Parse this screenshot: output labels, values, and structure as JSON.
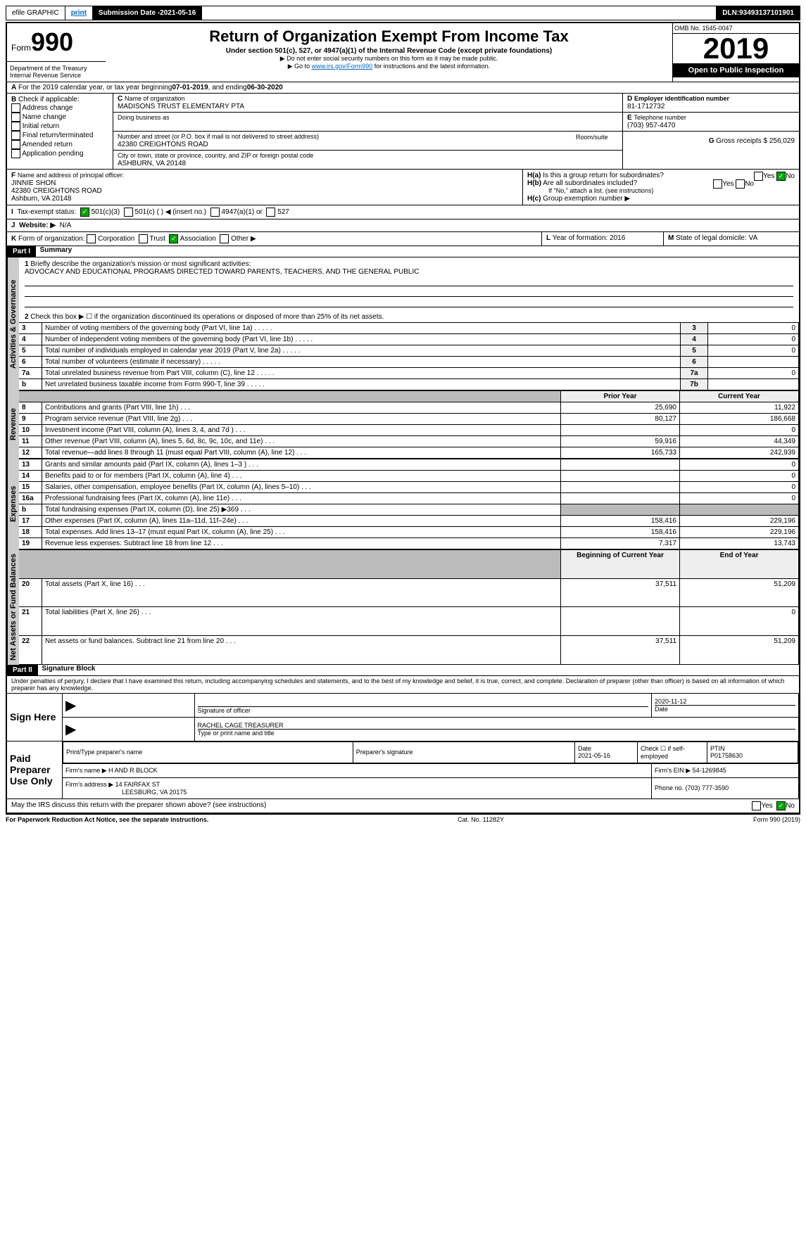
{
  "topbar": {
    "efile": "efile GRAPHIC",
    "print": "print",
    "subdate_label": "Submission Date - ",
    "subdate": "2021-05-16",
    "dln_label": "DLN: ",
    "dln": "93493137101901"
  },
  "header": {
    "form": "Form",
    "num": "990",
    "title": "Return of Organization Exempt From Income Tax",
    "sub": "Under section 501(c), 527, or 4947(a)(1) of the Internal Revenue Code (except private foundations)",
    "note1": "▶ Do not enter social security numbers on this form as it may be made public.",
    "note2a": "▶ Go to ",
    "note2link": "www.irs.gov/Form990",
    "note2b": " for instructions and the latest information.",
    "omb": "OMB No. 1545-0047",
    "year": "2019",
    "open": "Open to Public Inspection",
    "dept": "Department of the Treasury\nInternal Revenue Service"
  },
  "A": {
    "text": "For the 2019 calendar year, or tax year beginning ",
    "begin": "07-01-2019",
    "mid": " , and ending ",
    "end": "06-30-2020"
  },
  "B": {
    "label": "Check if applicable:",
    "opts": [
      "Address change",
      "Name change",
      "Initial return",
      "Final return/terminated",
      "Amended return",
      "Application pending"
    ]
  },
  "C": {
    "name_lbl": "Name of organization",
    "name": "MADISONS TRUST ELEMENTARY PTA",
    "dba_lbl": "Doing business as",
    "addr_lbl": "Number and street (or P.O. box if mail is not delivered to street address)",
    "room": "Room/suite",
    "addr": "42380 CREIGHTONS ROAD",
    "city_lbl": "City or town, state or province, country, and ZIP or foreign postal code",
    "city": "ASHBURN, VA  20148"
  },
  "D": {
    "lbl": "Employer identification number",
    "val": "81-1712732"
  },
  "E": {
    "lbl": "Telephone number",
    "val": "(703) 957-4470"
  },
  "G": {
    "lbl": "Gross receipts $ ",
    "val": "256,029"
  },
  "F": {
    "lbl": "Name and address of principal officer:",
    "name": "JINNIE SHON",
    "addr1": "42380 CREIGHTONS ROAD",
    "addr2": "Ashburn, VA  20148"
  },
  "H": {
    "a": "Is this a group return for subordinates?",
    "b": "Are all subordinates included?",
    "note": "If \"No,\" attach a list. (see instructions)",
    "c": "Group exemption number ▶",
    "yes": "Yes",
    "no": "No"
  },
  "I": {
    "lbl": "Tax-exempt status:",
    "a": "501(c)(3)",
    "b": "501(c) (  ) ◀ (insert no.)",
    "c": "4947(a)(1) or",
    "d": "527"
  },
  "J": {
    "lbl": "Website: ▶",
    "val": "N/A"
  },
  "K": {
    "lbl": "Form of organization:",
    "opts": [
      "Corporation",
      "Trust",
      "Association",
      "Other ▶"
    ],
    "checked": 2
  },
  "L": {
    "lbl": "Year of formation: ",
    "val": "2016"
  },
  "M": {
    "lbl": "State of legal domicile: ",
    "val": "VA"
  },
  "part1": {
    "title": "Part I",
    "name": "Summary",
    "q1": {
      "lbl": "Briefly describe the organization's mission or most significant activities:",
      "val": "ADVOCACY AND EDUCATIONAL PROGRAMS DIRECTED TOWARD PARENTS, TEACHERS, AND THE GENERAL PUBLIC"
    },
    "q2": "Check this box ▶ ☐ if the organization discontinued its operations or disposed of more than 25% of its net assets.",
    "rows": [
      {
        "n": "3",
        "t": "Number of voting members of the governing body (Part VI, line 1a)",
        "box": "3",
        "v": "0"
      },
      {
        "n": "4",
        "t": "Number of independent voting members of the governing body (Part VI, line 1b)",
        "box": "4",
        "v": "0"
      },
      {
        "n": "5",
        "t": "Total number of individuals employed in calendar year 2019 (Part V, line 2a)",
        "box": "5",
        "v": "0"
      },
      {
        "n": "6",
        "t": "Total number of volunteers (estimate if necessary)",
        "box": "6",
        "v": ""
      },
      {
        "n": "7a",
        "t": "Total unrelated business revenue from Part VIII, column (C), line 12",
        "box": "7a",
        "v": "0"
      },
      {
        "n": "b",
        "t": "Net unrelated business taxable income from Form 990-T, line 39",
        "box": "7b",
        "v": ""
      }
    ],
    "hdr_prior": "Prior Year",
    "hdr_curr": "Current Year",
    "rev": [
      {
        "n": "8",
        "t": "Contributions and grants (Part VIII, line 1h)",
        "p": "25,690",
        "c": "11,922"
      },
      {
        "n": "9",
        "t": "Program service revenue (Part VIII, line 2g)",
        "p": "80,127",
        "c": "186,668"
      },
      {
        "n": "10",
        "t": "Investment income (Part VIII, column (A), lines 3, 4, and 7d )",
        "p": "",
        "c": "0"
      },
      {
        "n": "11",
        "t": "Other revenue (Part VIII, column (A), lines 5, 6d, 8c, 9c, 10c, and 11e)",
        "p": "59,916",
        "c": "44,349"
      },
      {
        "n": "12",
        "t": "Total revenue—add lines 8 through 11 (must equal Part VIII, column (A), line 12)",
        "p": "165,733",
        "c": "242,939"
      }
    ],
    "exp": [
      {
        "n": "13",
        "t": "Grants and similar amounts paid (Part IX, column (A), lines 1–3 )",
        "p": "",
        "c": "0"
      },
      {
        "n": "14",
        "t": "Benefits paid to or for members (Part IX, column (A), line 4)",
        "p": "",
        "c": "0"
      },
      {
        "n": "15",
        "t": "Salaries, other compensation, employee benefits (Part IX, column (A), lines 5–10)",
        "p": "",
        "c": "0"
      },
      {
        "n": "16a",
        "t": "Professional fundraising fees (Part IX, column (A), line 11e)",
        "p": "",
        "c": "0"
      },
      {
        "n": "b",
        "t": "Total fundraising expenses (Part IX, column (D), line 25) ▶369",
        "p": "shade",
        "c": "shade"
      },
      {
        "n": "17",
        "t": "Other expenses (Part IX, column (A), lines 11a–11d, 11f–24e)",
        "p": "158,416",
        "c": "229,196"
      },
      {
        "n": "18",
        "t": "Total expenses. Add lines 13–17 (must equal Part IX, column (A), line 25)",
        "p": "158,416",
        "c": "229,196"
      },
      {
        "n": "19",
        "t": "Revenue less expenses. Subtract line 18 from line 12",
        "p": "7,317",
        "c": "13,743"
      }
    ],
    "hdr_beg": "Beginning of Current Year",
    "hdr_end": "End of Year",
    "net": [
      {
        "n": "20",
        "t": "Total assets (Part X, line 16)",
        "p": "37,511",
        "c": "51,209"
      },
      {
        "n": "21",
        "t": "Total liabilities (Part X, line 26)",
        "p": "",
        "c": "0"
      },
      {
        "n": "22",
        "t": "Net assets or fund balances. Subtract line 21 from line 20",
        "p": "37,511",
        "c": "51,209"
      }
    ]
  },
  "part2": {
    "title": "Part II",
    "name": "Signature Block",
    "decl": "Under penalties of perjury, I declare that I have examined this return, including accompanying schedules and statements, and to the best of my knowledge and belief, it is true, correct, and complete. Declaration of preparer (other than officer) is based on all information of which preparer has any knowledge."
  },
  "sign": {
    "here": "Sign Here",
    "sig": "Signature of officer",
    "date": "2020-11-12",
    "date_lbl": "Date",
    "name": "RACHEL CAGE TREASURER",
    "name_lbl": "Type or print name and title"
  },
  "prep": {
    "title": "Paid Preparer Use Only",
    "h1": "Print/Type preparer's name",
    "h2": "Preparer's signature",
    "h3": "Date",
    "date": "2021-05-16",
    "chk": "Check ☐ if self-employed",
    "ptin_lbl": "PTIN",
    "ptin": "P01758630",
    "firm_lbl": "Firm's name  ▶",
    "firm": "H AND R BLOCK",
    "ein_lbl": "Firm's EIN ▶",
    "ein": "54-1269845",
    "addr_lbl": "Firm's address ▶",
    "addr1": "14 FAIRFAX ST",
    "addr2": "LEESBURG, VA  20175",
    "phone_lbl": "Phone no. ",
    "phone": "(703) 777-3590"
  },
  "footer": {
    "q": "May the IRS discuss this return with the preparer shown above? (see instructions)",
    "pra": "For Paperwork Reduction Act Notice, see the separate instructions.",
    "cat": "Cat. No. 11282Y",
    "form": "Form 990 (2019)",
    "yes": "Yes",
    "no": "No"
  },
  "tabs": {
    "gov": "Activities & Governance",
    "rev": "Revenue",
    "exp": "Expenses",
    "net": "Net Assets or Fund Balances"
  }
}
